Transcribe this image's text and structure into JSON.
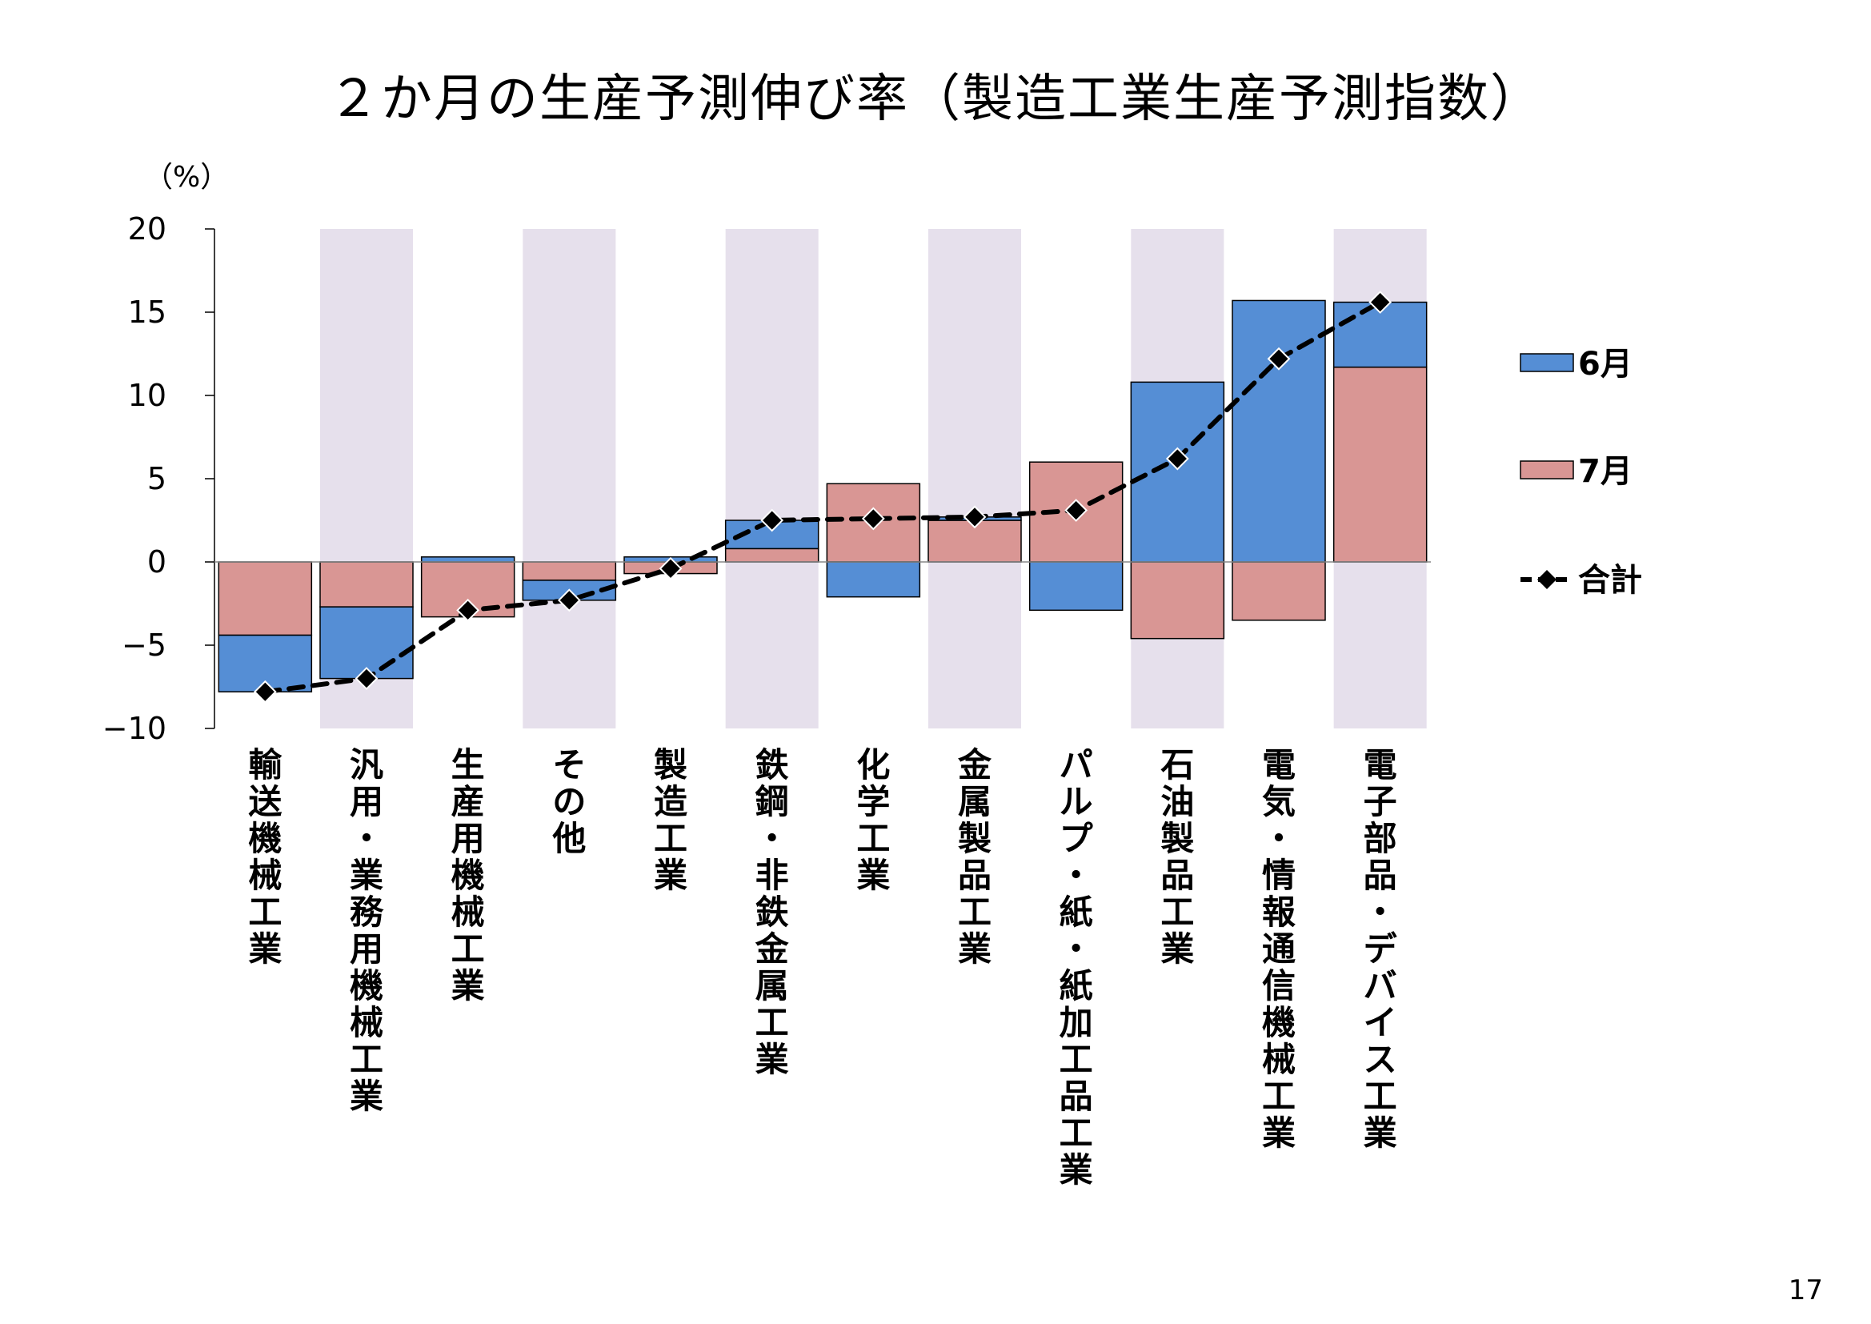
{
  "title": "２か月の生産予測伸び率（製造工業生産予測指数）",
  "page_number": "17",
  "colors": {
    "june": "#558ED5",
    "july": "#D99694",
    "shade": "#E6E0EC",
    "total_line": "#000000"
  },
  "chart_data": {
    "type": "bar",
    "stacked": true,
    "unit_label": "（%）",
    "ylim": [
      -10,
      20
    ],
    "yticks": [
      "20",
      "15",
      "10",
      "5",
      "0",
      "−5",
      "−10"
    ],
    "ytick_values": [
      20,
      15,
      10,
      5,
      0,
      -5,
      -10
    ],
    "shaded_categories": [
      1,
      3,
      5,
      7,
      9,
      11
    ],
    "categories": [
      "輸送機械工業",
      "汎用・業務用機械工業",
      "生産用機械工業",
      "その他",
      "製造工業",
      "鉄鋼・非鉄金属工業",
      "化学工業",
      "金属製品工業",
      "パルプ・紙・紙加工品工業",
      "石油製品工業",
      "電気・情報通信機械工業",
      "電子部品・デバイス工業"
    ],
    "series": [
      {
        "name": "6月",
        "values": [
          -3.4,
          -4.3,
          0.3,
          -1.2,
          0.3,
          1.7,
          -2.1,
          0.2,
          -2.9,
          10.8,
          15.7,
          3.9
        ]
      },
      {
        "name": "7月",
        "values": [
          -4.4,
          -2.7,
          -3.3,
          -1.1,
          -0.7,
          0.8,
          4.7,
          2.5,
          6.0,
          -4.6,
          -3.5,
          11.7
        ]
      },
      {
        "name": "合計",
        "type": "line",
        "values": [
          -7.8,
          -7.0,
          -2.9,
          -2.3,
          -0.4,
          2.5,
          2.6,
          2.7,
          3.1,
          6.2,
          12.2,
          15.6
        ]
      }
    ],
    "legend_position": "right"
  }
}
